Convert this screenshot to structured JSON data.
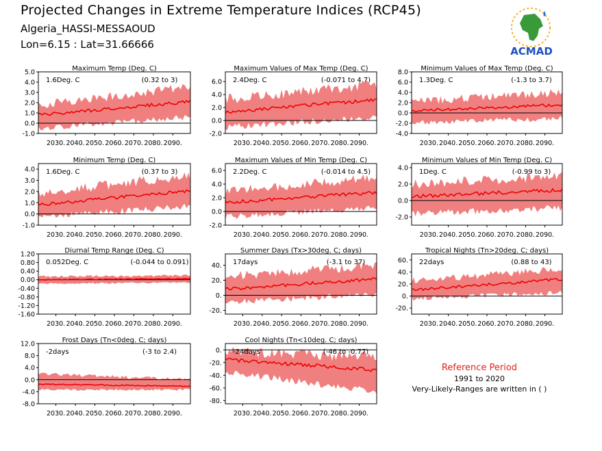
{
  "header": {
    "title": "Projected Changes in Extreme Temperature Indices (RCP45)",
    "location": "Algeria_HASSI-MESSAOUD",
    "coordinates": "Lon=6.15 : Lat=31.66666"
  },
  "logo": {
    "text": "ACMAD",
    "icon": "africa-map-logo"
  },
  "reference": {
    "title": "Reference Period",
    "period": "1991 to 2020",
    "note": "Very-Likely-Ranges are written in ( )"
  },
  "colors": {
    "band": "#f08080",
    "line": "#ee0000",
    "zero": "#000000"
  },
  "chart_data": [
    {
      "type": "area",
      "title": "Maximum Temp (Deg. C)",
      "value_label": "1.6Deg. C",
      "range_label": "(0.32 to 3)",
      "x": [
        2021,
        2099
      ],
      "x_ticks": [
        "2030.",
        "2040.",
        "2050.",
        "2060.",
        "2070.",
        "2080.",
        "2090."
      ],
      "y_ticks": [
        "5.0",
        "4.0",
        "3.0",
        "2.0",
        "1.0",
        "0.0",
        "-1.0"
      ],
      "ylim": [
        -1.0,
        5.0
      ],
      "median_start": 0.8,
      "median_end": 2.1,
      "low_start": -0.2,
      "low_end": 0.9,
      "high_start": 1.8,
      "high_end": 3.5
    },
    {
      "type": "area",
      "title": "Maximum Values of Max Temp (Deg. C)",
      "value_label": "2.4Deg. C",
      "range_label": "(-0.071 to 4.7)",
      "x": [
        2021,
        2099
      ],
      "x_ticks": [
        "2030.",
        "2040.",
        "2050.",
        "2060.",
        "2070.",
        "2080.",
        "2090."
      ],
      "y_ticks": [
        "6.0",
        "4.0",
        "2.0",
        "0.0",
        "-2.0"
      ],
      "ylim": [
        -2.0,
        7.5
      ],
      "median_start": 1.3,
      "median_end": 3.2,
      "low_start": -0.5,
      "low_end": 1.0,
      "high_start": 3.3,
      "high_end": 5.5
    },
    {
      "type": "area",
      "title": "Minimum Values of Max Temp (Deg. C)",
      "value_label": "1.3Deg. C",
      "range_label": "(-1.3 to 3.7)",
      "x": [
        2021,
        2099
      ],
      "x_ticks": [
        "2030.",
        "2040.",
        "2050.",
        "2060.",
        "2070.",
        "2080.",
        "2090."
      ],
      "y_ticks": [
        "8.0",
        "6.0",
        "4.0",
        "2.0",
        "0.0",
        "-2.0",
        "-4.0"
      ],
      "ylim": [
        -4.0,
        8.0
      ],
      "median_start": 0.4,
      "median_end": 1.6,
      "low_start": -1.5,
      "low_end": -0.5,
      "high_start": 2.2,
      "high_end": 4.0
    },
    {
      "type": "area",
      "title": "Minimum Temp (Deg. C)",
      "value_label": "1.6Deg. C",
      "range_label": "(0.37 to 3)",
      "x": [
        2021,
        2099
      ],
      "x_ticks": [
        "2030.",
        "2040.",
        "2050.",
        "2060.",
        "2070.",
        "2080.",
        "2090."
      ],
      "y_ticks": [
        "4.0",
        "3.0",
        "2.0",
        "1.0",
        "0.0",
        "-1.0"
      ],
      "ylim": [
        -1.0,
        4.5
      ],
      "median_start": 0.8,
      "median_end": 2.1,
      "low_start": 0.0,
      "low_end": 1.0,
      "high_start": 1.8,
      "high_end": 3.5
    },
    {
      "type": "area",
      "title": "Maximum Values of Min Temp (Deg. C)",
      "value_label": "2.2Deg. C",
      "range_label": "(-0.014 to 4.5)",
      "x": [
        2021,
        2099
      ],
      "x_ticks": [
        "2030.",
        "2040.",
        "2050.",
        "2060.",
        "2070.",
        "2080.",
        "2090."
      ],
      "y_ticks": [
        "6.0",
        "4.0",
        "2.0",
        "0.0",
        "-2.0"
      ],
      "ylim": [
        -2.0,
        7.0
      ],
      "median_start": 1.3,
      "median_end": 2.8,
      "low_start": -0.3,
      "low_end": 1.0,
      "high_start": 3.0,
      "high_end": 5.0
    },
    {
      "type": "area",
      "title": "Minimum Values of Min Temp (Deg. C)",
      "value_label": "1Deg. C",
      "range_label": "(-0.99 to 3)",
      "x": [
        2021,
        2099
      ],
      "x_ticks": [
        "2030.",
        "2040.",
        "2050.",
        "2060.",
        "2070.",
        "2080.",
        "2090."
      ],
      "y_ticks": [
        "4.0",
        "2.0",
        "0.0",
        "-2.0"
      ],
      "ylim": [
        -3.0,
        4.5
      ],
      "median_start": 0.5,
      "median_end": 1.3,
      "low_start": -1.2,
      "low_end": -0.5,
      "high_start": 2.0,
      "high_end": 3.0
    },
    {
      "type": "area",
      "title": "Diurnal Temp Range (Deg. C)",
      "value_label": "0.052Deg. C",
      "range_label": "(-0.044 to 0.091)",
      "x": [
        2021,
        2099
      ],
      "x_ticks": [
        "2030.",
        "2040.",
        "2050.",
        "2060.",
        "2070.",
        "2080.",
        "2090."
      ],
      "y_ticks": [
        "1.20",
        "0.80",
        "0.40",
        "0.00",
        "-0.40",
        "-0.80",
        "-1.20",
        "-1.60"
      ],
      "ylim": [
        -1.6,
        1.2
      ],
      "median_start": 0.0,
      "median_end": 0.05,
      "low_start": -0.15,
      "low_end": -0.1,
      "high_start": 0.15,
      "high_end": 0.2
    },
    {
      "type": "area",
      "title": "Summer Days (Tx>30deg. C; days)",
      "value_label": "17days",
      "range_label": "(-3.1 to 37)",
      "x": [
        2021,
        2099
      ],
      "x_ticks": [
        "2030.",
        "2040.",
        "2050.",
        "2060.",
        "2070.",
        "2080.",
        "2090."
      ],
      "y_ticks": [
        "40.",
        "20.",
        "0.",
        "-20."
      ],
      "ylim": [
        -25,
        55
      ],
      "median_start": 8,
      "median_end": 22,
      "low_start": -5,
      "low_end": 5,
      "high_start": 25,
      "high_end": 40
    },
    {
      "type": "area",
      "title": "Tropical Nights (Tn>20deg. C; days)",
      "value_label": "22days",
      "range_label": "(0.88 to 43)",
      "x": [
        2021,
        2099
      ],
      "x_ticks": [
        "2030.",
        "2040.",
        "2050.",
        "2060.",
        "2070.",
        "2080.",
        "2090."
      ],
      "y_ticks": [
        "60.",
        "40.",
        "20.",
        "0.",
        "-20."
      ],
      "ylim": [
        -30,
        70
      ],
      "median_start": 10,
      "median_end": 28,
      "low_start": 0,
      "low_end": 10,
      "high_start": 25,
      "high_end": 45
    },
    {
      "type": "area",
      "title": "Frost Days (Tn<0deg. C; days)",
      "value_label": "-2days",
      "range_label": "(-3 to 2.4)",
      "x": [
        2021,
        2099
      ],
      "x_ticks": [
        "2030.",
        "2040.",
        "2050.",
        "2060.",
        "2070.",
        "2080.",
        "2090."
      ],
      "y_ticks": [
        "12.0",
        "8.0",
        "4.0",
        "0.0",
        "-4.0",
        "-8.0"
      ],
      "ylim": [
        -8.0,
        12.0
      ],
      "median_start": -1.5,
      "median_end": -2.2,
      "low_start": -3.0,
      "low_end": -3.0,
      "high_start": 2.0,
      "high_end": 0.0
    },
    {
      "type": "area",
      "title": "Cool Nights (Tn<10deg. C; days)",
      "value_label": "-24days",
      "range_label": "(-46 to -0.77)",
      "x": [
        2021,
        2099
      ],
      "x_ticks": [
        "2030.",
        "2040.",
        "2050.",
        "2060.",
        "2070.",
        "2080.",
        "2090."
      ],
      "y_ticks": [
        "0.",
        "-20.",
        "-40.",
        "-60.",
        "-80."
      ],
      "ylim": [
        -85,
        10
      ],
      "median_start": -15,
      "median_end": -32,
      "low_start": -30,
      "low_end": -60,
      "high_start": -2,
      "high_end": -12
    }
  ]
}
